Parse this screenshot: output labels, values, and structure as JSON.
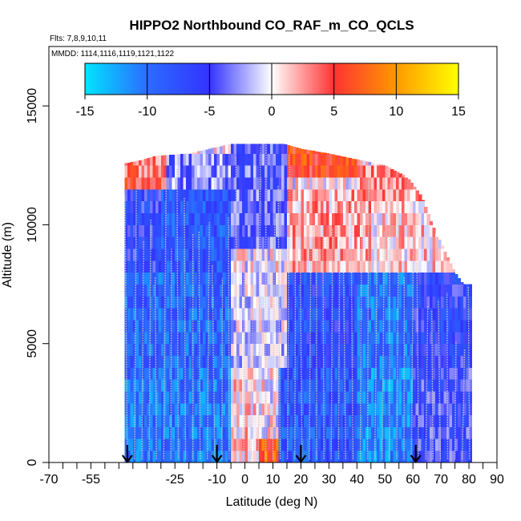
{
  "chart_data": {
    "type": "heatmap",
    "title": "HIPPO2 Northbound CO_RAF_m_CO_QCLS",
    "flights_label": "Flts: 7,8,9,10,11",
    "dates_label": "MMDD: 1114,1116,1119,1121,1122",
    "xlabel": "Latitude (deg N)",
    "ylabel": "Altitude (m)",
    "xlim": [
      -70,
      90
    ],
    "ylim": [
      0,
      17500
    ],
    "x_ticks": [
      -70,
      -55,
      -25,
      -10,
      0,
      10,
      20,
      30,
      40,
      50,
      60,
      70,
      80,
      90
    ],
    "x_minor_ticks": [
      -65,
      -60,
      -50,
      -45,
      -40,
      -35,
      -30,
      -20,
      -15,
      -5,
      5,
      15,
      25,
      35,
      45,
      55,
      65,
      75,
      85
    ],
    "y_ticks": [
      0,
      5000,
      10000,
      15000
    ],
    "colorbar": {
      "min": -15,
      "max": 15,
      "ticks": [
        -15,
        -10,
        -5,
        0,
        5,
        10,
        15
      ],
      "colors": [
        "#00e5ff",
        "#2b6cff",
        "#3333ff",
        "#ffffff",
        "#ff3333",
        "#ff9900",
        "#ffff00"
      ]
    },
    "flight_markers_lat": [
      -42,
      -10,
      20,
      61
    ],
    "lat_bounds": [
      -43,
      81
    ],
    "column_top_altitude": [
      {
        "lat": -42,
        "alt": 12600
      },
      {
        "lat": -38,
        "alt": 12700
      },
      {
        "lat": -32,
        "alt": 12900
      },
      {
        "lat": -20,
        "alt": 13000
      },
      {
        "lat": -5,
        "alt": 13400
      },
      {
        "lat": 5,
        "alt": 13400
      },
      {
        "lat": 14,
        "alt": 13400
      },
      {
        "lat": 20,
        "alt": 13200
      },
      {
        "lat": 30,
        "alt": 13000
      },
      {
        "lat": 42,
        "alt": 12700
      },
      {
        "lat": 50,
        "alt": 12500
      },
      {
        "lat": 58,
        "alt": 12000
      },
      {
        "lat": 63,
        "alt": 11200
      },
      {
        "lat": 67,
        "alt": 10000
      },
      {
        "lat": 71,
        "alt": 9000
      },
      {
        "lat": 75,
        "alt": 8000
      },
      {
        "lat": 78,
        "alt": 7500
      },
      {
        "lat": 81,
        "alt": 7500
      }
    ],
    "difference_field": [
      {
        "lat_from": -43,
        "lat_to": -28,
        "alt_from": 11500,
        "alt_to": 13000,
        "value": 4
      },
      {
        "lat_from": -28,
        "lat_to": -5,
        "alt_from": 11500,
        "alt_to": 13000,
        "value": -3
      },
      {
        "lat_from": -5,
        "lat_to": 15,
        "alt_from": 9000,
        "alt_to": 13400,
        "value": -4
      },
      {
        "lat_from": 15,
        "lat_to": 40,
        "alt_from": 12000,
        "alt_to": 13400,
        "value": 6
      },
      {
        "lat_from": 40,
        "lat_to": 65,
        "alt_from": 11000,
        "alt_to": 12700,
        "value": 3
      },
      {
        "lat_from": -43,
        "lat_to": -30,
        "alt_from": 8000,
        "alt_to": 11500,
        "value": -6
      },
      {
        "lat_from": -30,
        "lat_to": -5,
        "alt_from": 8000,
        "alt_to": 11500,
        "value": -8
      },
      {
        "lat_from": 15,
        "lat_to": 45,
        "alt_from": 8000,
        "alt_to": 11500,
        "value": 2
      },
      {
        "lat_from": 45,
        "lat_to": 75,
        "alt_from": 8000,
        "alt_to": 11000,
        "value": 1
      },
      {
        "lat_from": -43,
        "lat_to": -5,
        "alt_from": 4000,
        "alt_to": 8000,
        "value": -9
      },
      {
        "lat_from": -5,
        "lat_to": 15,
        "alt_from": 4000,
        "alt_to": 8000,
        "value": -1
      },
      {
        "lat_from": 15,
        "lat_to": 40,
        "alt_from": 4000,
        "alt_to": 8000,
        "value": -7
      },
      {
        "lat_from": 40,
        "lat_to": 60,
        "alt_from": 4000,
        "alt_to": 8000,
        "value": -10
      },
      {
        "lat_from": 60,
        "lat_to": 81,
        "alt_from": 4000,
        "alt_to": 8000,
        "value": -6
      },
      {
        "lat_from": -43,
        "lat_to": -5,
        "alt_from": 0,
        "alt_to": 4000,
        "value": -10
      },
      {
        "lat_from": -5,
        "lat_to": 5,
        "alt_from": 0,
        "alt_to": 4000,
        "value": 1
      },
      {
        "lat_from": 5,
        "lat_to": 12,
        "alt_from": 0,
        "alt_to": 1000,
        "value": 7
      },
      {
        "lat_from": 12,
        "lat_to": 40,
        "alt_from": 0,
        "alt_to": 4000,
        "value": -8
      },
      {
        "lat_from": 40,
        "lat_to": 60,
        "alt_from": 0,
        "alt_to": 4000,
        "value": -11
      },
      {
        "lat_from": 60,
        "lat_to": 81,
        "alt_from": 0,
        "alt_to": 4000,
        "value": -5
      }
    ]
  }
}
